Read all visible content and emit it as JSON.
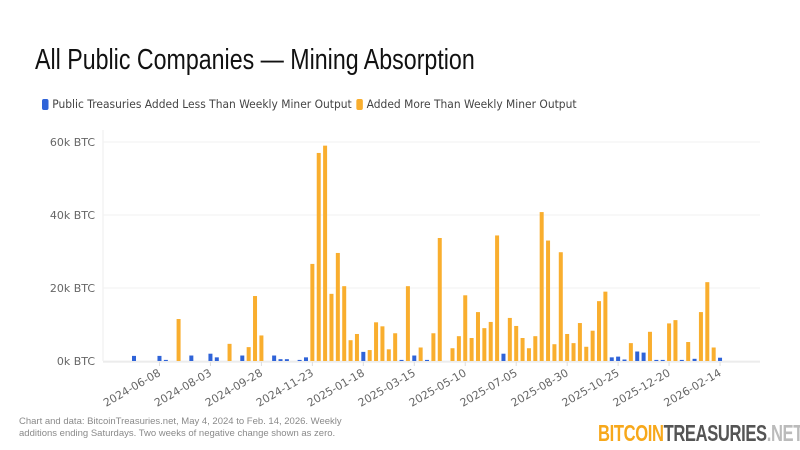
{
  "chart_data": {
    "type": "bar",
    "title": "All Public Companies — Mining Absorption",
    "x_start": "2024-05-11",
    "x_end": "2026-02-14",
    "x_interval": "weekly (Saturdays)",
    "xtick_labels": [
      "2024-06-08",
      "2024-08-03",
      "2024-09-28",
      "2024-11-23",
      "2025-01-18",
      "2025-03-15",
      "2025-05-10",
      "2025-07-05",
      "2025-08-30",
      "2025-10-25",
      "2025-12-20",
      "2026-02-14"
    ],
    "ytick_labels": [
      "0k BTC",
      "20k BTC",
      "40k BTC",
      "60k BTC"
    ],
    "ytick_values": [
      0,
      20000,
      40000,
      60000
    ],
    "ylim": [
      0,
      60000
    ],
    "unit": "BTC",
    "grid": true,
    "legend_position": "top-left",
    "series": [
      {
        "name": "Public Treasuries Added Less Than Weekly Miner Output",
        "color": "#2f63d8",
        "values_k": [
          1.4,
          0,
          0,
          0,
          1.4,
          0.3,
          0,
          0,
          0,
          1.5,
          0,
          0,
          2,
          1,
          0,
          0,
          0,
          1.5,
          0,
          0,
          0,
          0,
          1.5,
          0.5,
          0.5,
          0,
          0.3,
          1,
          0,
          0,
          0,
          0,
          0,
          0,
          0,
          0,
          2.5,
          0,
          0,
          0,
          0,
          0,
          0.3,
          0,
          1.5,
          0,
          0.3,
          0,
          0,
          0,
          0,
          0,
          0,
          0,
          0,
          0,
          0,
          0,
          2,
          0,
          0,
          0,
          0,
          0,
          0,
          0,
          0,
          0,
          0,
          0,
          0,
          0,
          0,
          0,
          0,
          1,
          1.2,
          0.4,
          0,
          2.6,
          2.3,
          0,
          0.3,
          0.3,
          0,
          0,
          0.3,
          0,
          0.6,
          0,
          0,
          0,
          0.9
        ]
      },
      {
        "name": "Added More Than Weekly Miner Output",
        "color": "#f9ae2e",
        "values_k": [
          0,
          0,
          0,
          0,
          0,
          0,
          0,
          11.5,
          0,
          0,
          0,
          0,
          0,
          0,
          0,
          4.7,
          0,
          0,
          3.8,
          17.8,
          7,
          0,
          0,
          0,
          0,
          0,
          0,
          0,
          26.6,
          57,
          59,
          18.4,
          29.6,
          20.5,
          5.7,
          7.4,
          0,
          3,
          10.6,
          9.5,
          3.2,
          7.6,
          0,
          20.5,
          0,
          3.7,
          0,
          7.6,
          33.7,
          0,
          3.5,
          6.8,
          18,
          6.3,
          13.4,
          9,
          10.7,
          34.4,
          0,
          11.8,
          9.6,
          6.3,
          3.5,
          6.8,
          40.8,
          33,
          4.6,
          29.8,
          7.4,
          4.9,
          10.4,
          3.9,
          8.3,
          16.4,
          19,
          0,
          0,
          0,
          4.9,
          0,
          0,
          8,
          0,
          0,
          10.3,
          11.2,
          0,
          5.2,
          0,
          13.4,
          21.6,
          3.7,
          0
        ]
      }
    ]
  },
  "legend": {
    "items": [
      "Public Treasuries Added Less Than Weekly Miner Output",
      "Added More Than Weekly Miner Output"
    ]
  },
  "footnote": "Chart and data: BitcoinTreasuries.net, May 4, 2024 to Feb. 14, 2026. Weekly additions ending Saturdays. Two weeks of negative change shown as zero.",
  "logo": {
    "part1": "BITCOIN",
    "part2": "TREASURIES",
    "part3": ".NET"
  }
}
